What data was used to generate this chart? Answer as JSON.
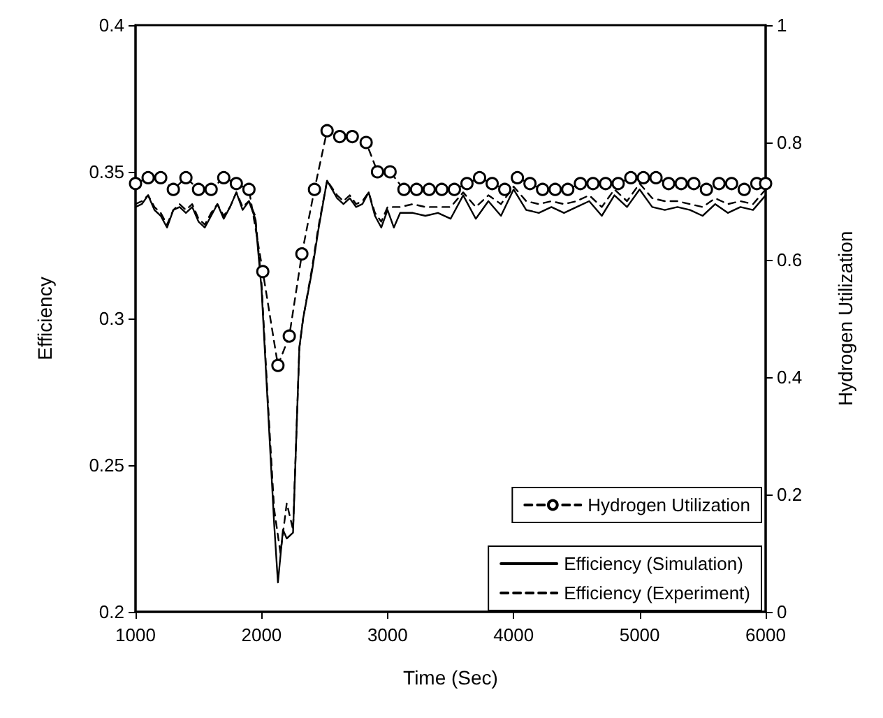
{
  "chart_data": {
    "type": "line",
    "xlabel": "Time (Sec)",
    "ylabel": "Efficiency",
    "y2label": "Hydrogen Utilization",
    "xlim": [
      1000,
      6000
    ],
    "xticks": [
      1000,
      2000,
      3000,
      4000,
      5000,
      6000
    ],
    "ylim": [
      0.2,
      0.4
    ],
    "yticks": [
      0.2,
      0.25,
      0.3,
      0.35,
      0.4
    ],
    "y2lim": [
      0,
      1
    ],
    "y2ticks": [
      0,
      0.2,
      0.4,
      0.6,
      0.8,
      1
    ],
    "grid": false,
    "legend": "bottom right",
    "series": [
      {
        "name": "Hydrogen Utilization",
        "axis": "y2",
        "color": "#000000",
        "line_style": "dashed",
        "marker": "circle",
        "x": [
          1000,
          1100,
          1200,
          1300,
          1400,
          1500,
          1600,
          1700,
          1800,
          1900,
          2010,
          2130,
          2220,
          2320,
          2420,
          2520,
          2620,
          2720,
          2830,
          2920,
          3020,
          3130,
          3230,
          3330,
          3430,
          3530,
          3630,
          3730,
          3830,
          3930,
          4030,
          4130,
          4230,
          4330,
          4430,
          4530,
          4630,
          4730,
          4830,
          4930,
          5030,
          5130,
          5230,
          5330,
          5430,
          5530,
          5630,
          5730,
          5830,
          5930,
          6000
        ],
        "values": [
          0.73,
          0.74,
          0.74,
          0.72,
          0.74,
          0.72,
          0.72,
          0.74,
          0.73,
          0.72,
          0.58,
          0.42,
          0.47,
          0.61,
          0.72,
          0.82,
          0.81,
          0.81,
          0.8,
          0.75,
          0.75,
          0.72,
          0.72,
          0.72,
          0.72,
          0.72,
          0.73,
          0.74,
          0.73,
          0.72,
          0.74,
          0.73,
          0.72,
          0.72,
          0.72,
          0.73,
          0.73,
          0.73,
          0.73,
          0.74,
          0.74,
          0.74,
          0.73,
          0.73,
          0.73,
          0.72,
          0.73,
          0.73,
          0.72,
          0.73,
          0.73
        ]
      },
      {
        "name": "Efficiency (Simulation)",
        "color": "#000000",
        "line_style": "solid",
        "marker": "none",
        "x": [
          1000,
          1050,
          1100,
          1150,
          1200,
          1250,
          1300,
          1350,
          1400,
          1450,
          1500,
          1550,
          1600,
          1650,
          1700,
          1750,
          1800,
          1850,
          1900,
          1950,
          2000,
          2050,
          2100,
          2130,
          2170,
          2200,
          2250,
          2300,
          2330,
          2400,
          2450,
          2520,
          2600,
          2650,
          2700,
          2750,
          2800,
          2850,
          2900,
          2950,
          3000,
          3050,
          3100,
          3200,
          3300,
          3400,
          3500,
          3600,
          3700,
          3800,
          3900,
          4000,
          4100,
          4200,
          4300,
          4400,
          4500,
          4600,
          4700,
          4800,
          4900,
          5000,
          5100,
          5200,
          5300,
          5400,
          5500,
          5600,
          5700,
          5800,
          5900,
          6000
        ],
        "values": [
          0.338,
          0.339,
          0.342,
          0.337,
          0.335,
          0.331,
          0.337,
          0.338,
          0.336,
          0.338,
          0.333,
          0.331,
          0.335,
          0.339,
          0.334,
          0.338,
          0.343,
          0.337,
          0.34,
          0.334,
          0.31,
          0.27,
          0.23,
          0.21,
          0.228,
          0.225,
          0.227,
          0.29,
          0.3,
          0.316,
          0.33,
          0.347,
          0.341,
          0.339,
          0.341,
          0.338,
          0.339,
          0.343,
          0.335,
          0.331,
          0.337,
          0.331,
          0.336,
          0.336,
          0.335,
          0.336,
          0.334,
          0.342,
          0.334,
          0.34,
          0.335,
          0.344,
          0.337,
          0.336,
          0.338,
          0.336,
          0.338,
          0.34,
          0.335,
          0.342,
          0.338,
          0.344,
          0.338,
          0.337,
          0.338,
          0.337,
          0.335,
          0.339,
          0.336,
          0.338,
          0.337,
          0.342
        ]
      },
      {
        "name": "Efficiency (Experiment)",
        "color": "#000000",
        "line_style": "dashed",
        "marker": "none",
        "x": [
          1000,
          1050,
          1100,
          1150,
          1200,
          1250,
          1300,
          1350,
          1400,
          1450,
          1500,
          1550,
          1600,
          1650,
          1700,
          1750,
          1800,
          1850,
          1900,
          1950,
          2000,
          2050,
          2100,
          2150,
          2200,
          2250,
          2300,
          2330,
          2400,
          2450,
          2520,
          2600,
          2650,
          2700,
          2750,
          2800,
          2850,
          2900,
          2950,
          3000,
          3100,
          3200,
          3300,
          3400,
          3500,
          3600,
          3700,
          3800,
          3900,
          4000,
          4100,
          4200,
          4300,
          4400,
          4500,
          4600,
          4700,
          4800,
          4900,
          5000,
          5100,
          5200,
          5300,
          5400,
          5500,
          5600,
          5700,
          5800,
          5900,
          6000
        ],
        "values": [
          0.339,
          0.34,
          0.342,
          0.338,
          0.336,
          0.332,
          0.337,
          0.339,
          0.337,
          0.339,
          0.334,
          0.332,
          0.336,
          0.339,
          0.335,
          0.338,
          0.343,
          0.338,
          0.34,
          0.335,
          0.312,
          0.272,
          0.235,
          0.22,
          0.237,
          0.228,
          0.29,
          0.3,
          0.317,
          0.331,
          0.347,
          0.342,
          0.34,
          0.342,
          0.339,
          0.34,
          0.343,
          0.336,
          0.333,
          0.338,
          0.338,
          0.339,
          0.338,
          0.338,
          0.338,
          0.343,
          0.338,
          0.342,
          0.339,
          0.345,
          0.34,
          0.339,
          0.34,
          0.339,
          0.34,
          0.342,
          0.338,
          0.344,
          0.34,
          0.346,
          0.341,
          0.34,
          0.34,
          0.339,
          0.338,
          0.341,
          0.339,
          0.34,
          0.339,
          0.344
        ]
      }
    ]
  }
}
